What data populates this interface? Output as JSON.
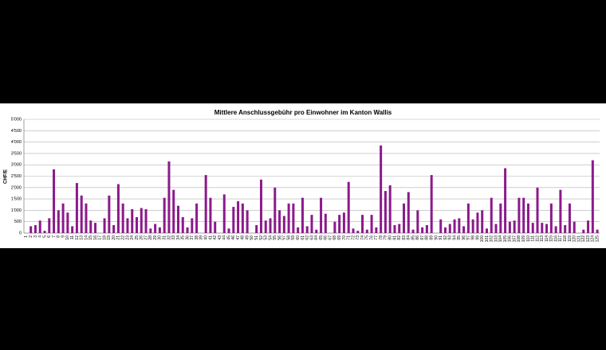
{
  "chart_data": {
    "type": "bar",
    "title": "Mittlere Anschlussgebühr pro Einwohner im Kanton Wallis",
    "y_label": "CHF/E",
    "color": "#8b1a8b",
    "grid": true,
    "ylim": [
      0,
      5000
    ],
    "yticks": [
      {
        "value": 0,
        "label": "0"
      },
      {
        "value": 500,
        "label": "500"
      },
      {
        "value": 1000,
        "label": "1'000"
      },
      {
        "value": 1500,
        "label": "1'500"
      },
      {
        "value": 2000,
        "label": "2'000"
      },
      {
        "value": 2500,
        "label": "2'500"
      },
      {
        "value": 3000,
        "label": "3'000"
      },
      {
        "value": 3500,
        "label": "3'500"
      },
      {
        "value": 4000,
        "label": "4'000"
      },
      {
        "value": 4500,
        "label": "4'500"
      },
      {
        "value": 5000,
        "label": "5'000"
      }
    ],
    "categories": [
      "1",
      "2",
      "3",
      "4",
      "5",
      "6",
      "7",
      "8",
      "9",
      "10",
      "11",
      "12",
      "13",
      "14",
      "15",
      "16",
      "17",
      "18",
      "19",
      "20",
      "21",
      "22",
      "23",
      "24",
      "25",
      "26",
      "27",
      "28",
      "29",
      "30",
      "31",
      "32",
      "33",
      "34",
      "35",
      "36",
      "37",
      "38",
      "39",
      "40",
      "41",
      "42",
      "43",
      "44",
      "45",
      "46",
      "47",
      "48",
      "49",
      "50",
      "51",
      "52",
      "53",
      "54",
      "55",
      "56",
      "57",
      "58",
      "59",
      "60",
      "61",
      "62",
      "63",
      "64",
      "65",
      "66",
      "67",
      "68",
      "69",
      "70",
      "71",
      "72",
      "73",
      "74",
      "75",
      "76",
      "77",
      "78",
      "79",
      "80",
      "81",
      "82",
      "83",
      "84",
      "85",
      "86",
      "87",
      "88",
      "89",
      "90",
      "91",
      "92",
      "93",
      "94",
      "95",
      "96",
      "97",
      "98",
      "99",
      "100",
      "101",
      "102",
      "103",
      "104",
      "105",
      "106",
      "107",
      "108",
      "109",
      "110",
      "111",
      "112",
      "113",
      "114",
      "115",
      "116",
      "117",
      "118",
      "119",
      "120",
      "121",
      "122",
      "123",
      "124",
      "125"
    ],
    "values": [
      0,
      300,
      350,
      550,
      100,
      650,
      2800,
      1000,
      1300,
      900,
      300,
      2200,
      1650,
      1300,
      550,
      450,
      0,
      650,
      1650,
      350,
      2150,
      1300,
      650,
      1050,
      700,
      1100,
      1050,
      200,
      400,
      250,
      1550,
      3150,
      1900,
      1200,
      700,
      250,
      650,
      1300,
      0,
      2550,
      1550,
      500,
      0,
      1700,
      200,
      1150,
      1400,
      1300,
      1000,
      0,
      350,
      2350,
      550,
      650,
      2000,
      1000,
      750,
      1300,
      1300,
      250,
      1550,
      300,
      800,
      150,
      1550,
      850,
      0,
      500,
      800,
      900,
      2250,
      200,
      100,
      800,
      150,
      800,
      250,
      3850,
      1850,
      2100,
      350,
      400,
      1300,
      1800,
      150,
      1000,
      250,
      350,
      2550,
      0,
      600,
      250,
      400,
      600,
      650,
      300,
      1300,
      600,
      900,
      1000,
      200,
      1550,
      400,
      1300,
      2850,
      500,
      550,
      1550,
      1550,
      1300,
      450,
      2000,
      450,
      400,
      1300,
      300,
      1900,
      350,
      1300,
      500,
      0,
      150,
      550,
      3200,
      150
    ]
  }
}
